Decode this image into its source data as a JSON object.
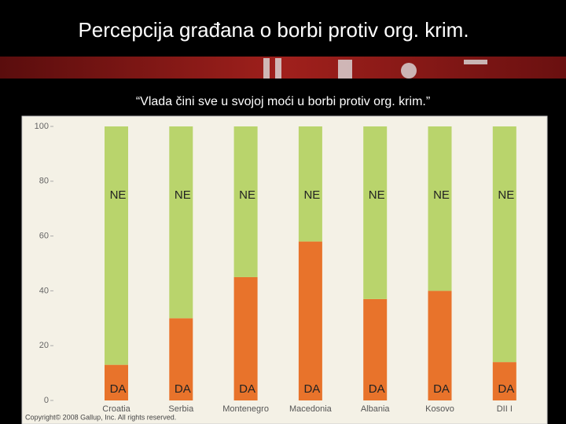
{
  "chart_data": {
    "type": "bar",
    "stacked": true,
    "title": "Percepcija građana o borbi protiv org. krim.",
    "subtitle": "“Vlada čini sve u svojoj moći u borbi protiv org. krim.”",
    "source": "Copyright© 2008 Gallup, Inc. All rights reserved.",
    "categories": [
      "Croatia",
      "Serbia",
      "Montenegro",
      "Macedonia",
      "Albania",
      "Kosovo",
      "DII I"
    ],
    "series": [
      {
        "name": "DA",
        "color": "#e8732b",
        "values": [
          13,
          30,
          45,
          58,
          37,
          40,
          14
        ]
      },
      {
        "name": "NE",
        "color": "#b9d46c",
        "values": [
          87,
          70,
          55,
          42,
          63,
          60,
          86
        ]
      }
    ],
    "ylim": [
      0,
      100
    ],
    "yticks": [
      0,
      20,
      40,
      60,
      80,
      100
    ],
    "grid": false
  }
}
